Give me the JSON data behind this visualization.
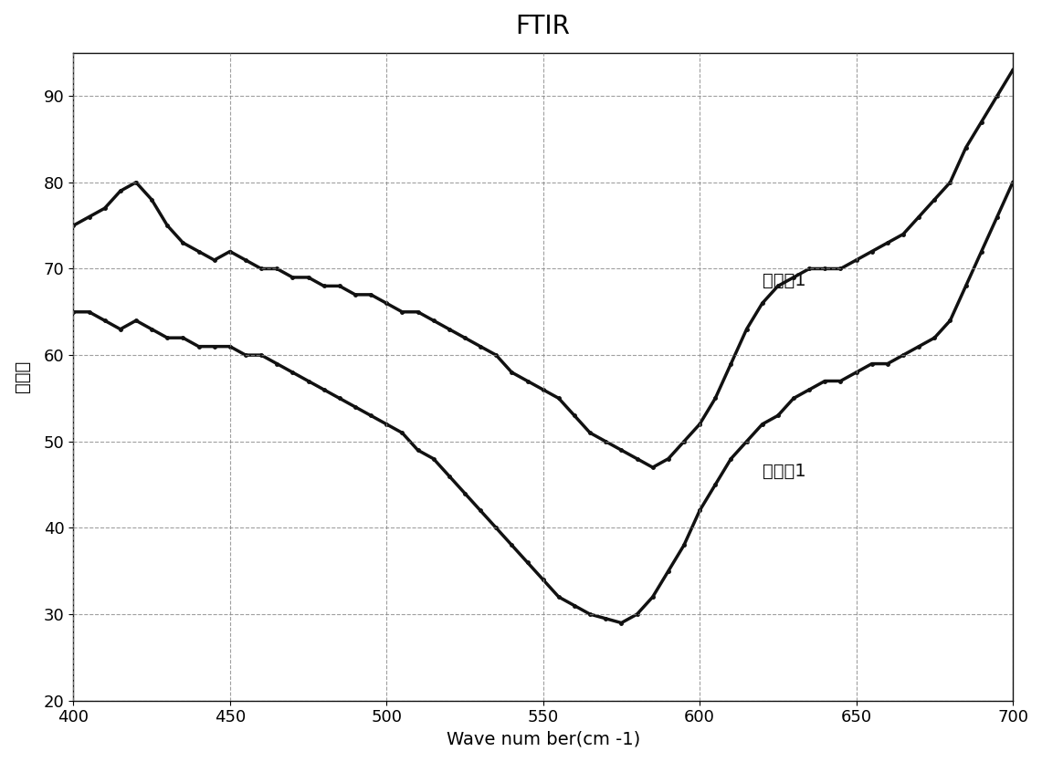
{
  "title": "FTIR",
  "xlabel": "Wave num ber(cm -1)",
  "ylabel": "透过率",
  "xlim": [
    400,
    700
  ],
  "ylim": [
    20,
    95
  ],
  "xticks": [
    400,
    450,
    500,
    550,
    600,
    650,
    700
  ],
  "yticks": [
    20,
    30,
    40,
    50,
    60,
    70,
    80,
    90
  ],
  "label1": "比较例1",
  "label2": "实施例1",
  "curve1_x": [
    400,
    405,
    410,
    415,
    420,
    425,
    430,
    435,
    440,
    445,
    450,
    455,
    460,
    465,
    470,
    475,
    480,
    485,
    490,
    495,
    500,
    505,
    510,
    515,
    520,
    525,
    530,
    535,
    540,
    545,
    550,
    555,
    560,
    565,
    570,
    575,
    580,
    585,
    590,
    595,
    600,
    605,
    610,
    615,
    620,
    625,
    630,
    635,
    640,
    645,
    650,
    655,
    660,
    665,
    670,
    675,
    680,
    685,
    690,
    695,
    700
  ],
  "curve1_y": [
    75,
    76,
    77,
    79,
    80,
    78,
    75,
    73,
    72,
    71,
    72,
    71,
    70,
    70,
    69,
    69,
    68,
    68,
    67,
    67,
    66,
    65,
    65,
    64,
    63,
    62,
    61,
    60,
    58,
    57,
    56,
    55,
    53,
    51,
    50,
    49,
    48,
    47,
    48,
    50,
    52,
    55,
    59,
    63,
    66,
    68,
    69,
    70,
    70,
    70,
    71,
    72,
    73,
    74,
    76,
    78,
    80,
    84,
    87,
    90,
    93
  ],
  "curve2_x": [
    400,
    405,
    410,
    415,
    420,
    425,
    430,
    435,
    440,
    445,
    450,
    455,
    460,
    465,
    470,
    475,
    480,
    485,
    490,
    495,
    500,
    505,
    510,
    515,
    520,
    525,
    530,
    535,
    540,
    545,
    550,
    555,
    560,
    565,
    570,
    575,
    580,
    585,
    590,
    595,
    600,
    605,
    610,
    615,
    620,
    625,
    630,
    635,
    640,
    645,
    650,
    655,
    660,
    665,
    670,
    675,
    680,
    685,
    690,
    695,
    700
  ],
  "curve2_y": [
    65,
    65,
    64,
    63,
    64,
    63,
    62,
    62,
    61,
    61,
    61,
    60,
    60,
    59,
    58,
    57,
    56,
    55,
    54,
    53,
    52,
    51,
    49,
    48,
    46,
    44,
    42,
    40,
    38,
    36,
    34,
    32,
    31,
    30,
    29.5,
    29,
    30,
    32,
    35,
    38,
    42,
    45,
    48,
    50,
    52,
    53,
    55,
    56,
    57,
    57,
    58,
    59,
    59,
    60,
    61,
    62,
    64,
    68,
    72,
    76,
    80
  ],
  "line_color": "#111111",
  "bg_color": "#ffffff",
  "title_fontsize": 20,
  "label_fontsize": 14,
  "tick_fontsize": 13,
  "annotation_fontsize": 14
}
